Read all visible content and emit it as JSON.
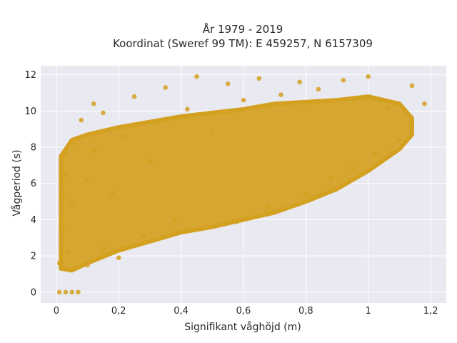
{
  "chart_data": {
    "type": "scatter",
    "title": [
      "År 1979 - 2019",
      "Koordinat (Sweref 99 TM): E 459257, N 6157309"
    ],
    "xlabel": "Signifikant våghöjd (m)",
    "ylabel": "Vågperiod (s)",
    "xlim": [
      -0.05,
      1.25
    ],
    "ylim": [
      -0.6,
      12.5
    ],
    "xticks": [
      0,
      0.2,
      0.4,
      0.6,
      0.8,
      1,
      1.2
    ],
    "xtick_labels": [
      "0",
      "0,2",
      "0,4",
      "0,6",
      "0,8",
      "1",
      "1,2"
    ],
    "yticks": [
      0,
      2,
      4,
      6,
      8,
      10,
      12
    ],
    "ytick_labels": [
      "0",
      "2",
      "4",
      "6",
      "8",
      "10",
      "12"
    ],
    "grid": true,
    "legend": false,
    "colors": {
      "marker": "#d4a020",
      "plot_bg": "#e9e9f2",
      "grid": "#ffffff"
    },
    "series": [
      {
        "points": [
          [
            0.01,
            0
          ],
          [
            0.03,
            0
          ],
          [
            0.05,
            0
          ],
          [
            0.07,
            0
          ],
          [
            0.01,
            1.6
          ],
          [
            0.02,
            3.4
          ],
          [
            0.02,
            5.2
          ],
          [
            0.03,
            6.5
          ],
          [
            0.03,
            7.6
          ],
          [
            0.04,
            2.2
          ],
          [
            0.05,
            4.8
          ],
          [
            0.06,
            8.2
          ],
          [
            0.08,
            9.5
          ],
          [
            0.1,
            1.5
          ],
          [
            0.1,
            6.2
          ],
          [
            0.12,
            7.8
          ],
          [
            0.12,
            10.4
          ],
          [
            0.15,
            2.4
          ],
          [
            0.15,
            9.9
          ],
          [
            0.18,
            5.4
          ],
          [
            0.2,
            1.9
          ],
          [
            0.22,
            8.6
          ],
          [
            0.25,
            10.8
          ],
          [
            0.28,
            3.1
          ],
          [
            0.3,
            7.2
          ],
          [
            0.32,
            9.4
          ],
          [
            0.35,
            11.3
          ],
          [
            0.38,
            4.0
          ],
          [
            0.42,
            10.1
          ],
          [
            0.45,
            11.9
          ],
          [
            0.48,
            3.6
          ],
          [
            0.5,
            8.9
          ],
          [
            0.55,
            11.5
          ],
          [
            0.58,
            3.9
          ],
          [
            0.6,
            10.6
          ],
          [
            0.65,
            11.8
          ],
          [
            0.68,
            4.7
          ],
          [
            0.72,
            10.9
          ],
          [
            0.78,
            11.6
          ],
          [
            0.8,
            5.4
          ],
          [
            0.84,
            11.2
          ],
          [
            0.88,
            6.3
          ],
          [
            0.92,
            11.7
          ],
          [
            0.95,
            6.8
          ],
          [
            1.0,
            11.9
          ],
          [
            1.02,
            7.6
          ],
          [
            1.06,
            10.2
          ],
          [
            1.1,
            8.4
          ],
          [
            1.14,
            11.4
          ],
          [
            1.18,
            10.4
          ]
        ],
        "envelope": {
          "x": [
            0.015,
            0.05,
            0.1,
            0.2,
            0.3,
            0.4,
            0.5,
            0.6,
            0.7,
            0.8,
            0.9,
            1.0,
            1.05,
            1.1,
            1.14
          ],
          "y_low": [
            1.3,
            1.2,
            1.6,
            2.3,
            2.8,
            3.3,
            3.6,
            4.0,
            4.4,
            5.0,
            5.7,
            6.7,
            7.3,
            7.9,
            8.7
          ],
          "y_high": [
            7.5,
            8.4,
            8.7,
            9.1,
            9.4,
            9.7,
            9.9,
            10.1,
            10.4,
            10.5,
            10.6,
            10.8,
            10.6,
            10.4,
            9.6
          ]
        }
      }
    ]
  }
}
